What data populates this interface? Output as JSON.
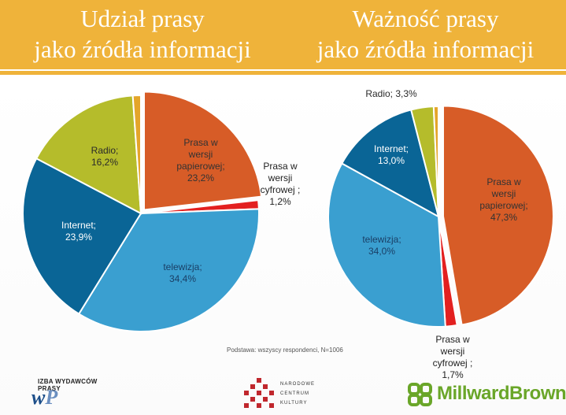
{
  "header": {
    "title_left": "Udział prasy\njako źródła informacji",
    "title_right": "Ważność prasy\njako źródła informacji",
    "background": "#efb33a"
  },
  "footnote": "Podstawa: wszyscy respondenci, N=1006",
  "logos": {
    "izba": "IZBA WYDAWCÓW PRASY",
    "nck_lines": [
      "NARODOWE",
      "CENTRUM",
      "KULTURY"
    ],
    "millward_brown": "MillwardBrown"
  },
  "chart_data": [
    {
      "type": "pie",
      "title": "Udział prasy jako źródła informacji",
      "slices": [
        {
          "label": "Prasa w wersji papierowej;",
          "value": 23.2,
          "value_label": "23,2%",
          "color": "#d75c27"
        },
        {
          "label": "Prasa w wersji cyfrowej ;",
          "value": 1.2,
          "value_label": "1,2%",
          "color": "#e32020"
        },
        {
          "label": "telewizja;",
          "value": 34.4,
          "value_label": "34,4%",
          "color": "#3a9fd0"
        },
        {
          "label": "Internet;",
          "value": 23.9,
          "value_label": "23,9%",
          "color": "#0a6596"
        },
        {
          "label": "Radio;",
          "value": 16.2,
          "value_label": "16,2%",
          "color": "#b5bc2b"
        },
        {
          "label": "",
          "value": 1.1,
          "value_label": "",
          "color": "#e4a52a"
        }
      ],
      "start_angle_deg": 0,
      "direction": "clockwise"
    },
    {
      "type": "pie",
      "title": "Ważność prasy jako źródła informacji",
      "slices": [
        {
          "label": "Prasa w wersji papierowej;",
          "value": 47.3,
          "value_label": "47,3%",
          "color": "#d75c27"
        },
        {
          "label": "Prasa w wersji cyfrowej ;",
          "value": 1.7,
          "value_label": "1,7%",
          "color": "#e32020"
        },
        {
          "label": "telewizja;",
          "value": 34.0,
          "value_label": "34,0%",
          "color": "#3a9fd0"
        },
        {
          "label": "Internet;",
          "value": 13.0,
          "value_label": "13,0%",
          "color": "#0a6596"
        },
        {
          "label": "Radio;",
          "value": 3.3,
          "value_label": "3,3%",
          "color": "#b5bc2b"
        },
        {
          "label": "",
          "value": 0.7,
          "value_label": "",
          "color": "#e4a52a"
        }
      ],
      "start_angle_deg": 0,
      "direction": "clockwise"
    }
  ]
}
